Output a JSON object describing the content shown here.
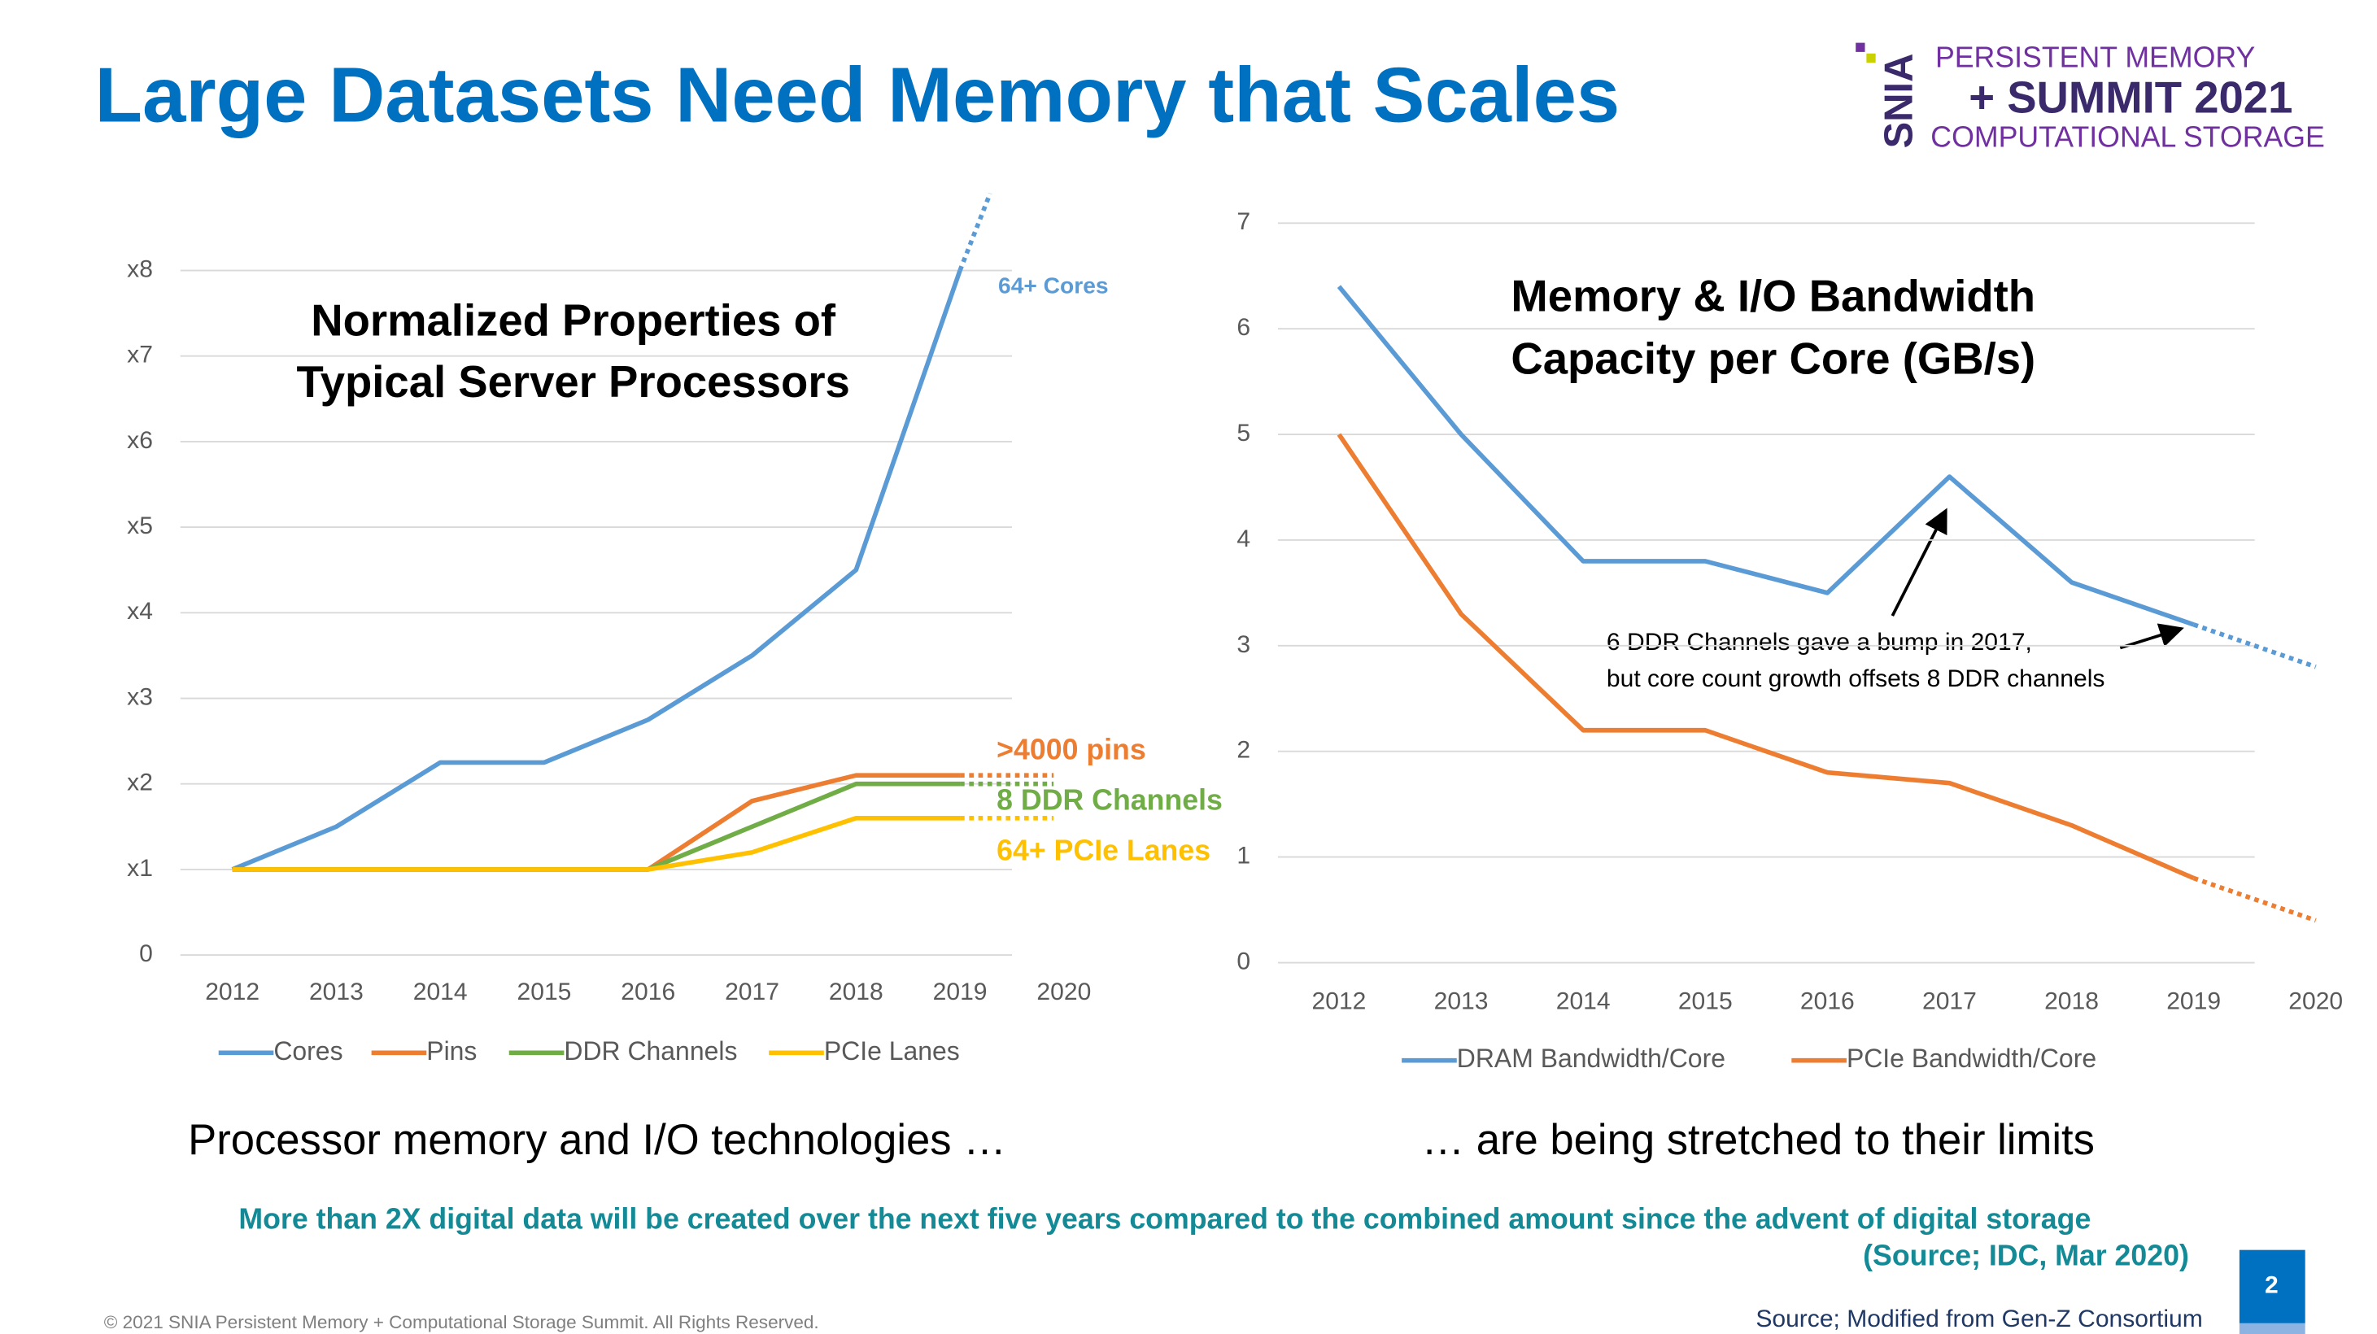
{
  "title": "Large Datasets Need Memory that Scales",
  "logo": {
    "mark": "SNIA",
    "line1": "PERSISTENT MEMORY",
    "line2": "+  SUMMIT 2021",
    "line3": "COMPUTATIONAL STORAGE"
  },
  "chart_data": [
    {
      "type": "line",
      "title_lines": [
        "Normalized Properties of",
        "Typical Server Processors"
      ],
      "x": [
        2012,
        2013,
        2014,
        2015,
        2016,
        2017,
        2018,
        2019
      ],
      "xlim": [
        2011.5,
        2019.5
      ],
      "xticks": [
        2012,
        2013,
        2014,
        2015,
        2016,
        2017,
        2018,
        2019,
        2020
      ],
      "ylim": [
        0,
        8
      ],
      "yticks": [
        0,
        {
          "value": 1,
          "label": "x1"
        },
        {
          "value": 2,
          "label": "x2"
        },
        {
          "value": 3,
          "label": "x3"
        },
        {
          "value": 4,
          "label": "x4"
        },
        {
          "value": 5,
          "label": "x5"
        },
        {
          "value": 6,
          "label": "x6"
        },
        {
          "value": 7,
          "label": "x7"
        },
        {
          "value": 8,
          "label": "x8"
        }
      ],
      "grid": true,
      "legend": "bottom",
      "series": [
        {
          "name": "Cores",
          "color": "#5b9bd5",
          "values": [
            1,
            1.5,
            2.25,
            2.25,
            2.75,
            3.5,
            4.5,
            8
          ],
          "label": "64+ Cores",
          "projection": {
            "x": [
              2019,
              2019.29
            ],
            "values": [
              8,
              8.9
            ]
          }
        },
        {
          "name": "Pins",
          "color": "#ed7d31",
          "values": [
            1,
            1,
            1,
            1,
            1,
            1.8,
            2.1,
            2.1
          ],
          "label": ">4000 pins",
          "projection": {
            "x": [
              2019,
              2019.9
            ],
            "values": [
              2.1,
              2.1
            ]
          }
        },
        {
          "name": "DDR Channels",
          "color": "#70ad47",
          "values": [
            1,
            1,
            1,
            1,
            1,
            1.5,
            2,
            2
          ],
          "label": "8 DDR Channels",
          "projection": {
            "x": [
              2019,
              2019.9
            ],
            "values": [
              2,
              2
            ]
          }
        },
        {
          "name": "PCIe Lanes",
          "color": "#ffc000",
          "values": [
            1,
            1,
            1,
            1,
            1,
            1.2,
            1.6,
            1.6
          ],
          "label": "64+ PCIe Lanes",
          "projection": {
            "x": [
              2019,
              2019.9
            ],
            "values": [
              1.6,
              1.6
            ]
          }
        }
      ]
    },
    {
      "type": "line",
      "title_lines": [
        "Memory & I/O Bandwidth",
        "Capacity per Core (GB/s)"
      ],
      "x": [
        2012,
        2013,
        2014,
        2015,
        2016,
        2017,
        2018,
        2019
      ],
      "xlim": [
        2011.5,
        2019.5
      ],
      "xticks": [
        2012,
        2013,
        2014,
        2015,
        2016,
        2017,
        2018,
        2019,
        2020
      ],
      "ylim": [
        0,
        7
      ],
      "yticks": [
        0,
        1,
        2,
        3,
        4,
        5,
        6,
        7
      ],
      "grid": true,
      "legend": "bottom",
      "annotation": [
        "6 DDR Channels gave a bump in 2017,",
        "but core count growth offsets 8 DDR channels"
      ],
      "series": [
        {
          "name": "DRAM Bandwidth/Core",
          "color": "#5b9bd5",
          "values": [
            6.4,
            5.0,
            3.8,
            3.8,
            3.5,
            4.6,
            3.6,
            3.2
          ],
          "projection": {
            "x": [
              2019,
              2020
            ],
            "values": [
              3.2,
              2.8
            ]
          }
        },
        {
          "name": "PCIe Bandwidth/Core",
          "color": "#ed7d31",
          "values": [
            5.0,
            3.3,
            2.2,
            2.2,
            1.8,
            1.7,
            1.3,
            0.8
          ],
          "projection": {
            "x": [
              2019,
              2020
            ],
            "values": [
              0.8,
              0.4
            ]
          }
        }
      ]
    }
  ],
  "captions": [
    "Processor memory and I/O technologies …",
    "… are being stretched to their limits"
  ],
  "note": "More than 2X digital data will be created over the next five years compared to the combined  amount since the advent of digital storage",
  "note_source": "(Source; IDC, Mar 2020)",
  "source": "Source; Modified from Gen-Z Consortium",
  "page_number": "2",
  "copyright": "© 2021 SNIA Persistent Memory + Computational Storage Summit. All Rights Reserved."
}
